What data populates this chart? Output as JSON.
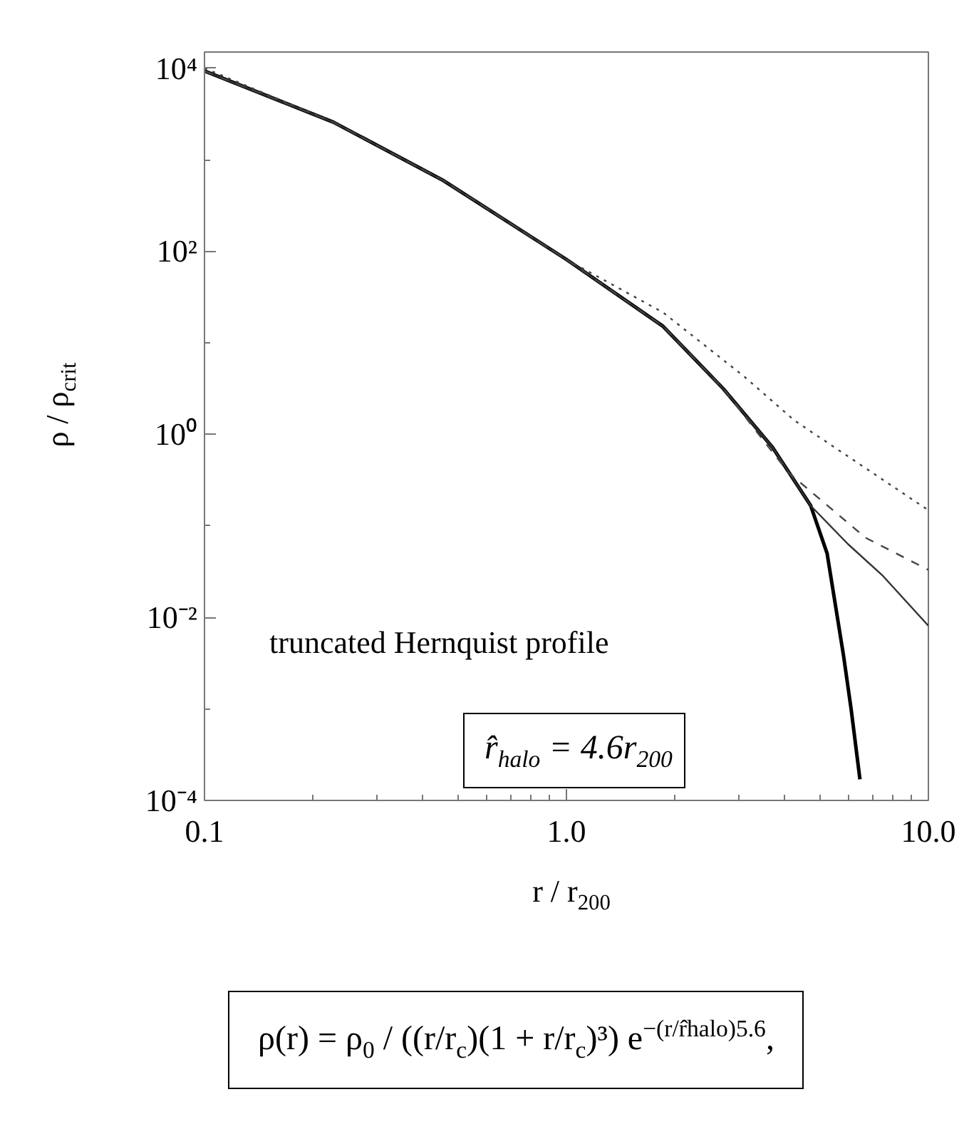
{
  "chart_data": {
    "type": "line",
    "xlabel": "r / r$_{200}$",
    "ylabel": "ρ / ρ$_{crit}$",
    "log": "xy",
    "grid": false,
    "xlim": [
      0.1,
      10
    ],
    "ylim": [
      0.0001,
      15000
    ],
    "xticks": [
      0.1,
      {
        "value": 0.2,
        "label": null
      },
      {
        "value": 0.3,
        "label": null
      },
      {
        "value": 0.4,
        "label": null
      },
      {
        "value": 0.5,
        "label": null
      },
      {
        "value": 0.6,
        "label": null
      },
      {
        "value": 0.7,
        "label": null
      },
      {
        "value": 0.8,
        "label": null
      },
      {
        "value": 0.9,
        "label": null
      },
      {
        "value": 1,
        "label": "1.0"
      },
      {
        "value": 2,
        "label": null
      },
      {
        "value": 3,
        "label": null
      },
      {
        "value": 4,
        "label": null
      },
      {
        "value": 5,
        "label": null
      },
      {
        "value": 6,
        "label": null
      },
      {
        "value": 7,
        "label": null
      },
      {
        "value": 8,
        "label": null
      },
      {
        "value": 9,
        "label": null
      },
      {
        "value": 10,
        "label": "10.0"
      }
    ],
    "yticks": [
      {
        "value": 0.0001,
        "label": "10⁻⁴"
      },
      {
        "value": 0.001,
        "label": null
      },
      {
        "value": 0.01,
        "label": "10⁻²"
      },
      {
        "value": 0.1,
        "label": null
      },
      {
        "value": 1,
        "label": "10⁰"
      },
      {
        "value": 10,
        "label": null
      },
      {
        "value": 100,
        "label": "10²"
      },
      {
        "value": 1000,
        "label": null
      },
      {
        "value": 10000,
        "label": "10⁴"
      }
    ],
    "series": [
      {
        "color": "#000000",
        "line_style": "solid",
        "x": [
          0.1,
          0.227,
          0.458,
          1.0,
          1.85,
          2.71,
          3.71,
          4.73,
          5.25,
          5.83,
          6.12,
          6.47
        ],
        "values": [
          9300,
          2570,
          589,
          81.3,
          15.1,
          3.16,
          0.72,
          0.166,
          0.05,
          0.0038,
          0.00098,
          0.00017
        ]
      },
      {
        "color": "#333333",
        "line_style": "solid",
        "x": [
          0.1,
          0.227,
          0.458,
          1.0,
          1.85,
          2.71,
          3.71,
          4.73,
          6.0,
          7.45,
          10
        ],
        "values": [
          9300,
          2570,
          589,
          81.3,
          15.1,
          3.16,
          0.72,
          0.166,
          0.063,
          0.029,
          0.0081
        ]
      },
      {
        "color": "#444444",
        "line_style": "dashed",
        "x": [
          0.1,
          0.227,
          0.458,
          1.0,
          1.85,
          2.71,
          4.11,
          6.71,
          10
        ],
        "values": [
          9300,
          2570,
          589,
          81.3,
          15.1,
          3.16,
          0.38,
          0.074,
          0.033
        ]
      },
      {
        "color": "#444444",
        "line_style": "dotted",
        "x": [
          0.1,
          0.227,
          0.458,
          1.0,
          1.85,
          3.1,
          4.27,
          10
        ],
        "values": [
          10000,
          2570,
          589,
          81.3,
          21.4,
          4.27,
          1.41,
          0.148
        ]
      }
    ],
    "annotations": [
      "truncated Hernquist profile",
      "r̂$_{halo}$ = 4.6r$_{200}$",
      "ρ(r) = ρ$_{0}$ / ((r/r$_{c}$)(1 + r/r$_{c}$)³) e$^{−(r/r̂halo)5.6}$,"
    ]
  }
}
